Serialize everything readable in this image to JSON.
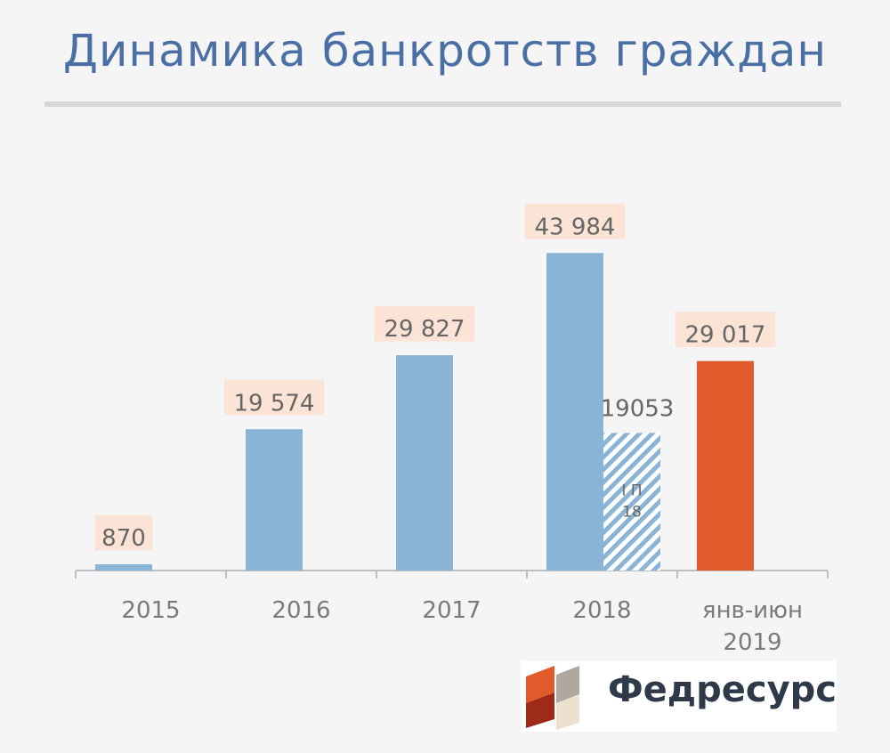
{
  "title": "Динамика банкротств граждан",
  "brand": {
    "name": "Федресурс"
  },
  "colors": {
    "title": "#4a6fa5",
    "bar": "#8ab4d6",
    "highlight": "#e05a2b",
    "label_bg": "#fbe3d6",
    "label_text": "#666666",
    "axis": "#bfbfbf"
  },
  "chart_data": {
    "type": "bar",
    "categories": [
      "2015",
      "2016",
      "2017",
      "2018",
      "янв-июн 2019"
    ],
    "values": [
      870,
      19574,
      29827,
      43984,
      29017
    ],
    "value_labels": [
      "870",
      "19 574",
      "29 827",
      "43 984",
      "29 017"
    ],
    "highlight_index": 4,
    "extra_bar": {
      "category": "2018",
      "value": 19053,
      "value_label": "19053",
      "inner_label": "I П 18",
      "pattern": "diagonal-hatch"
    },
    "ylim": [
      0,
      45000
    ],
    "grid": false,
    "legend": "none"
  }
}
